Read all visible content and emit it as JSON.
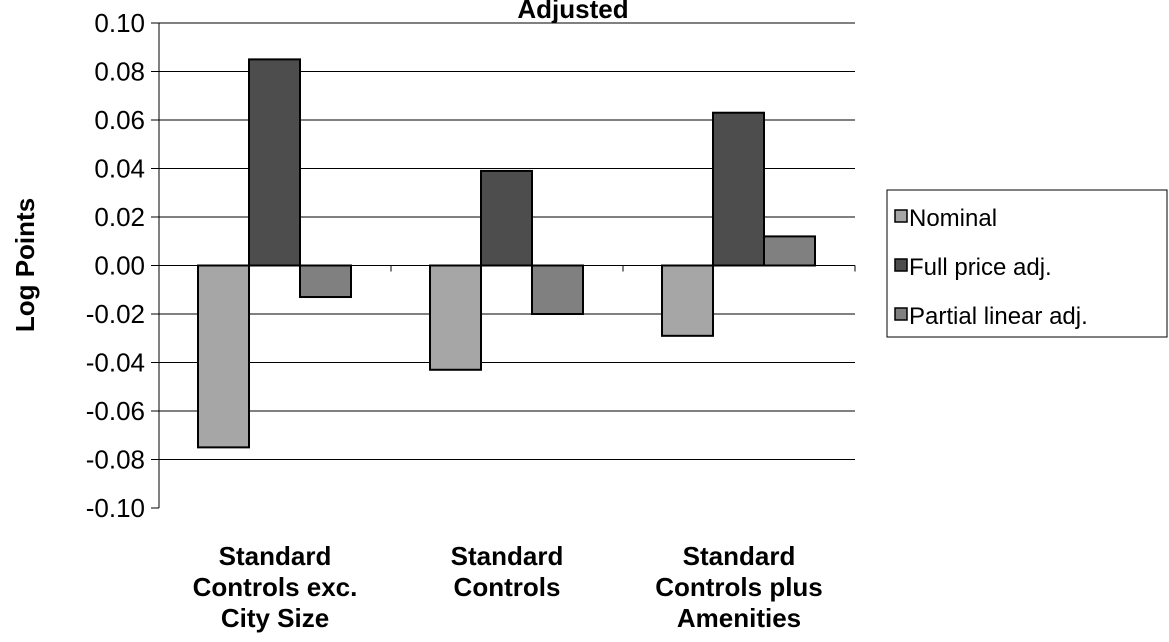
{
  "chart_data": {
    "type": "bar",
    "title": "Adjusted",
    "xlabel": "",
    "ylabel": "Log Points",
    "ylim": [
      -0.1,
      0.1
    ],
    "yticks": [
      "0.10",
      "0.08",
      "0.06",
      "0.04",
      "0.02",
      "0.00",
      "-0.02",
      "-0.04",
      "-0.06",
      "-0.08",
      "-0.10"
    ],
    "grid": true,
    "legend_position": "right",
    "categories": [
      [
        "Standard",
        "Controls exc.",
        "City Size"
      ],
      [
        "Standard",
        "Controls"
      ],
      [
        "Standard",
        "Controls plus",
        "Amenities"
      ]
    ],
    "series": [
      {
        "name": "Nominal",
        "color": "#a6a6a6",
        "values": [
          -0.075,
          -0.043,
          -0.029
        ]
      },
      {
        "name": "Full price adj.",
        "color": "#4d4d4d",
        "values": [
          0.085,
          0.039,
          0.063
        ]
      },
      {
        "name": "Partial linear adj.",
        "color": "#808080",
        "values": [
          -0.013,
          -0.02,
          0.012
        ]
      }
    ]
  }
}
